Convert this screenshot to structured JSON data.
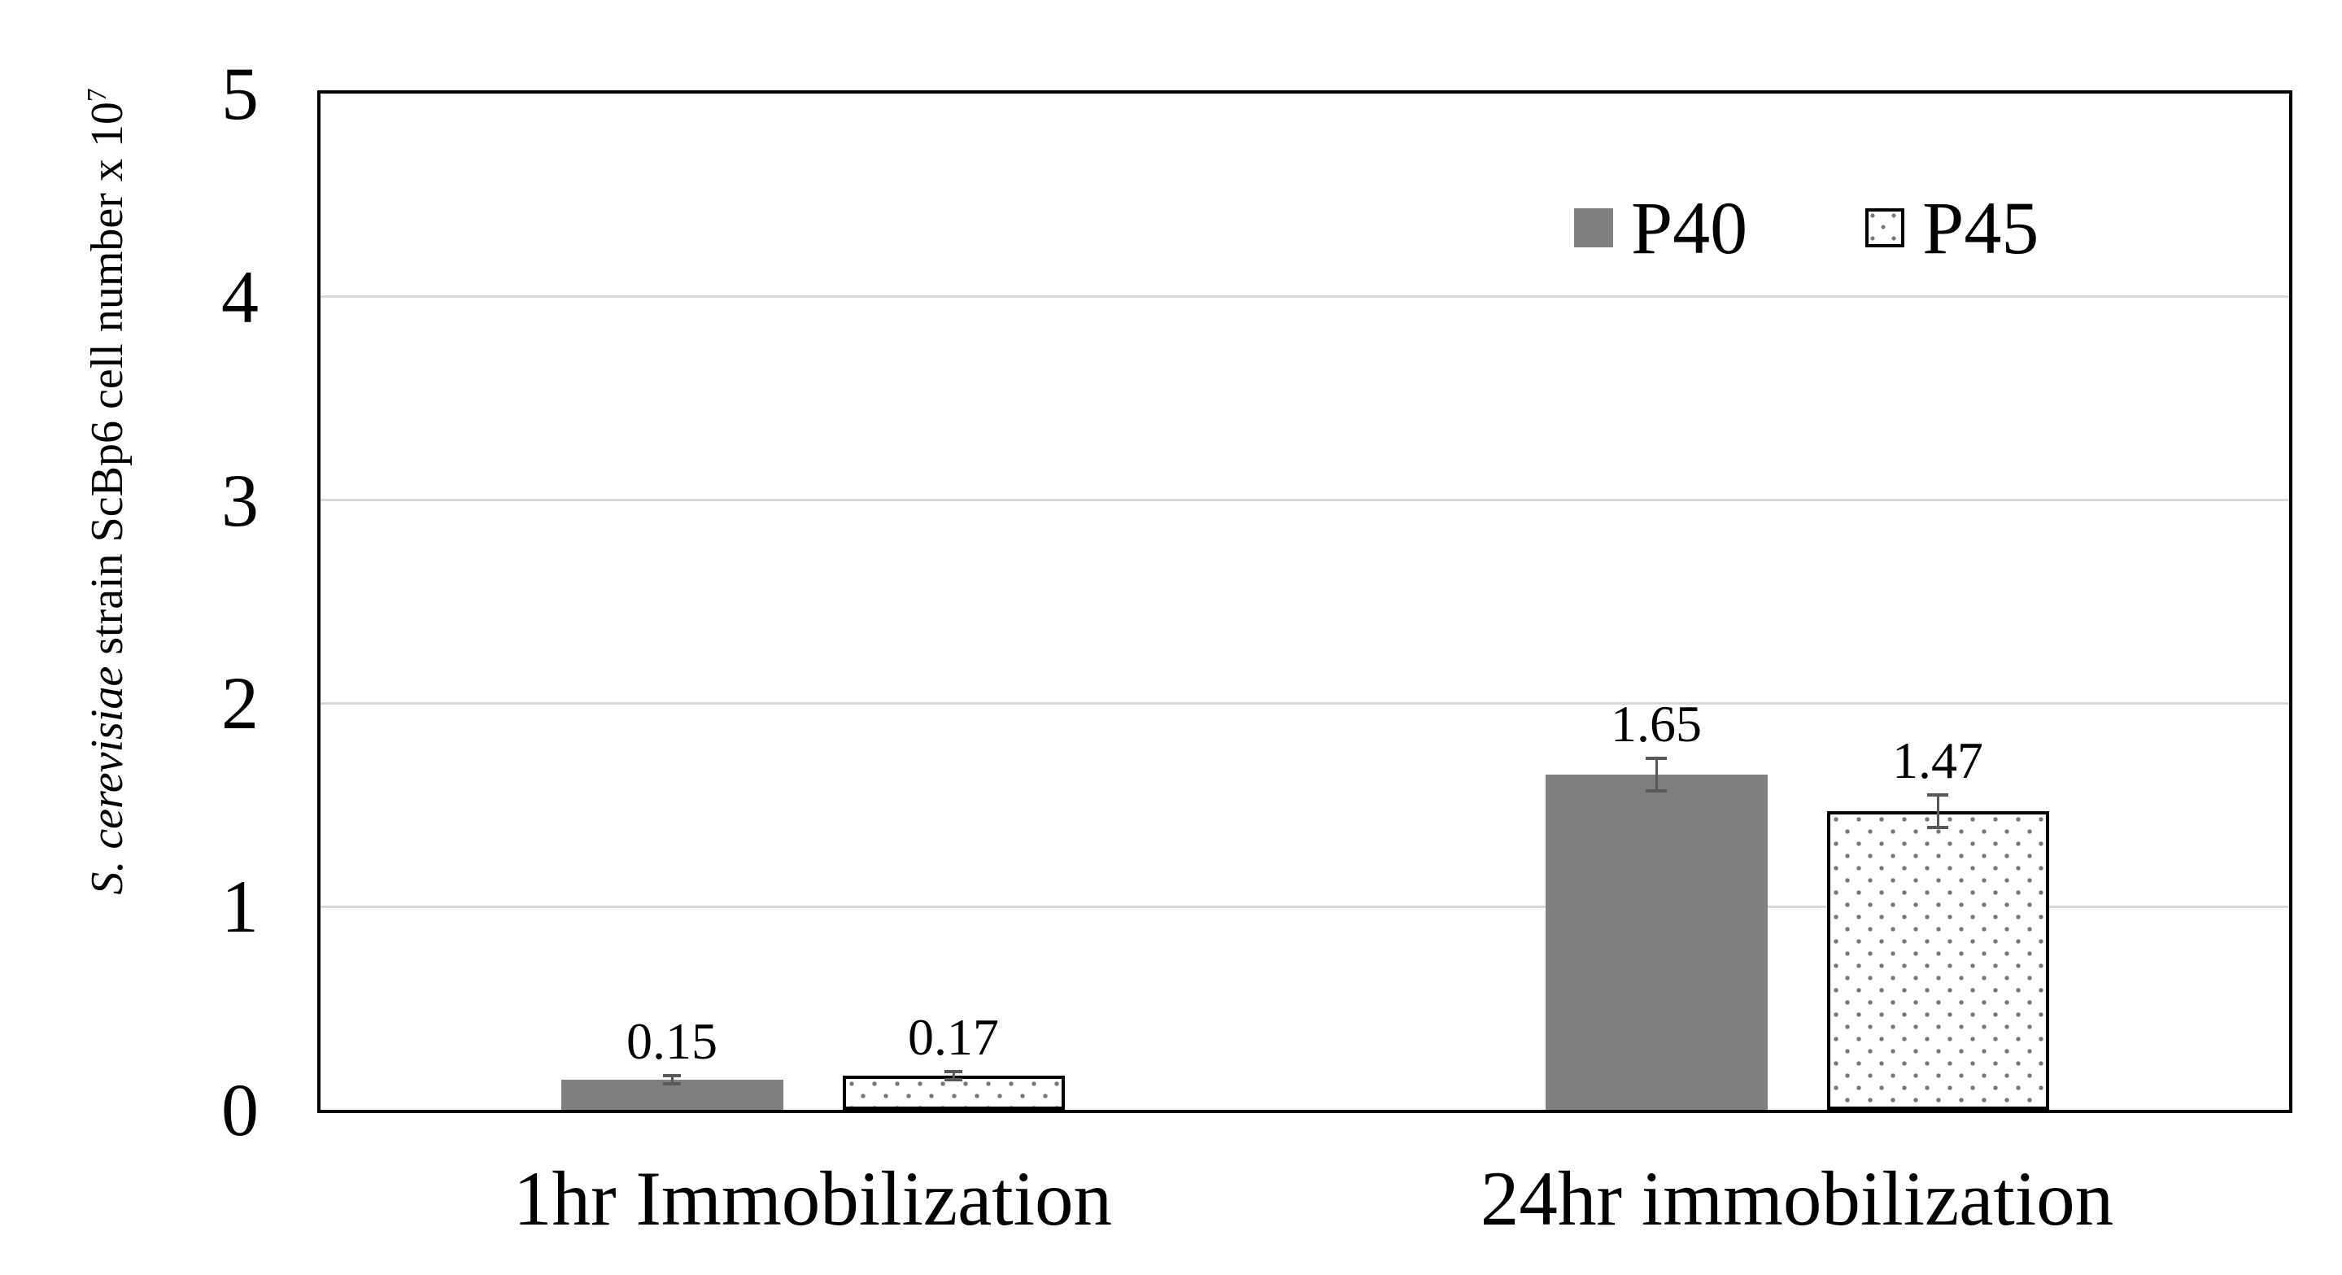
{
  "chart_data": {
    "type": "bar",
    "categories": [
      "1hr Immobilization",
      "24hr immobilization"
    ],
    "series": [
      {
        "name": "P40",
        "style": "solid",
        "values": [
          0.15,
          1.65
        ],
        "labels": [
          "0.15",
          "1.65"
        ],
        "errors": [
          0.02,
          0.08
        ]
      },
      {
        "name": "P45",
        "style": "dotted",
        "values": [
          0.17,
          1.47
        ],
        "labels": [
          "0.17",
          "1.47"
        ],
        "errors": [
          0.02,
          0.08
        ]
      }
    ],
    "ylabel_italic": "S. cerevisiae",
    "ylabel_rest": " strain ScBp6 cell number x 10",
    "ylabel_exponent": "7",
    "ylim": [
      0,
      5
    ],
    "ytick_step": 1,
    "ytick_labels": [
      "0",
      "1",
      "2",
      "3",
      "4",
      "5"
    ],
    "grid": true,
    "legend_position": "top-right",
    "colors": {
      "bar_solid": "#7f7f7f",
      "bar_dotted_fill": "#ffffff",
      "dot_pattern": "#787878",
      "gridline": "#d9d9d9",
      "error_bar": "#595959",
      "axis_border": "#000000",
      "background": "#ffffff"
    }
  }
}
